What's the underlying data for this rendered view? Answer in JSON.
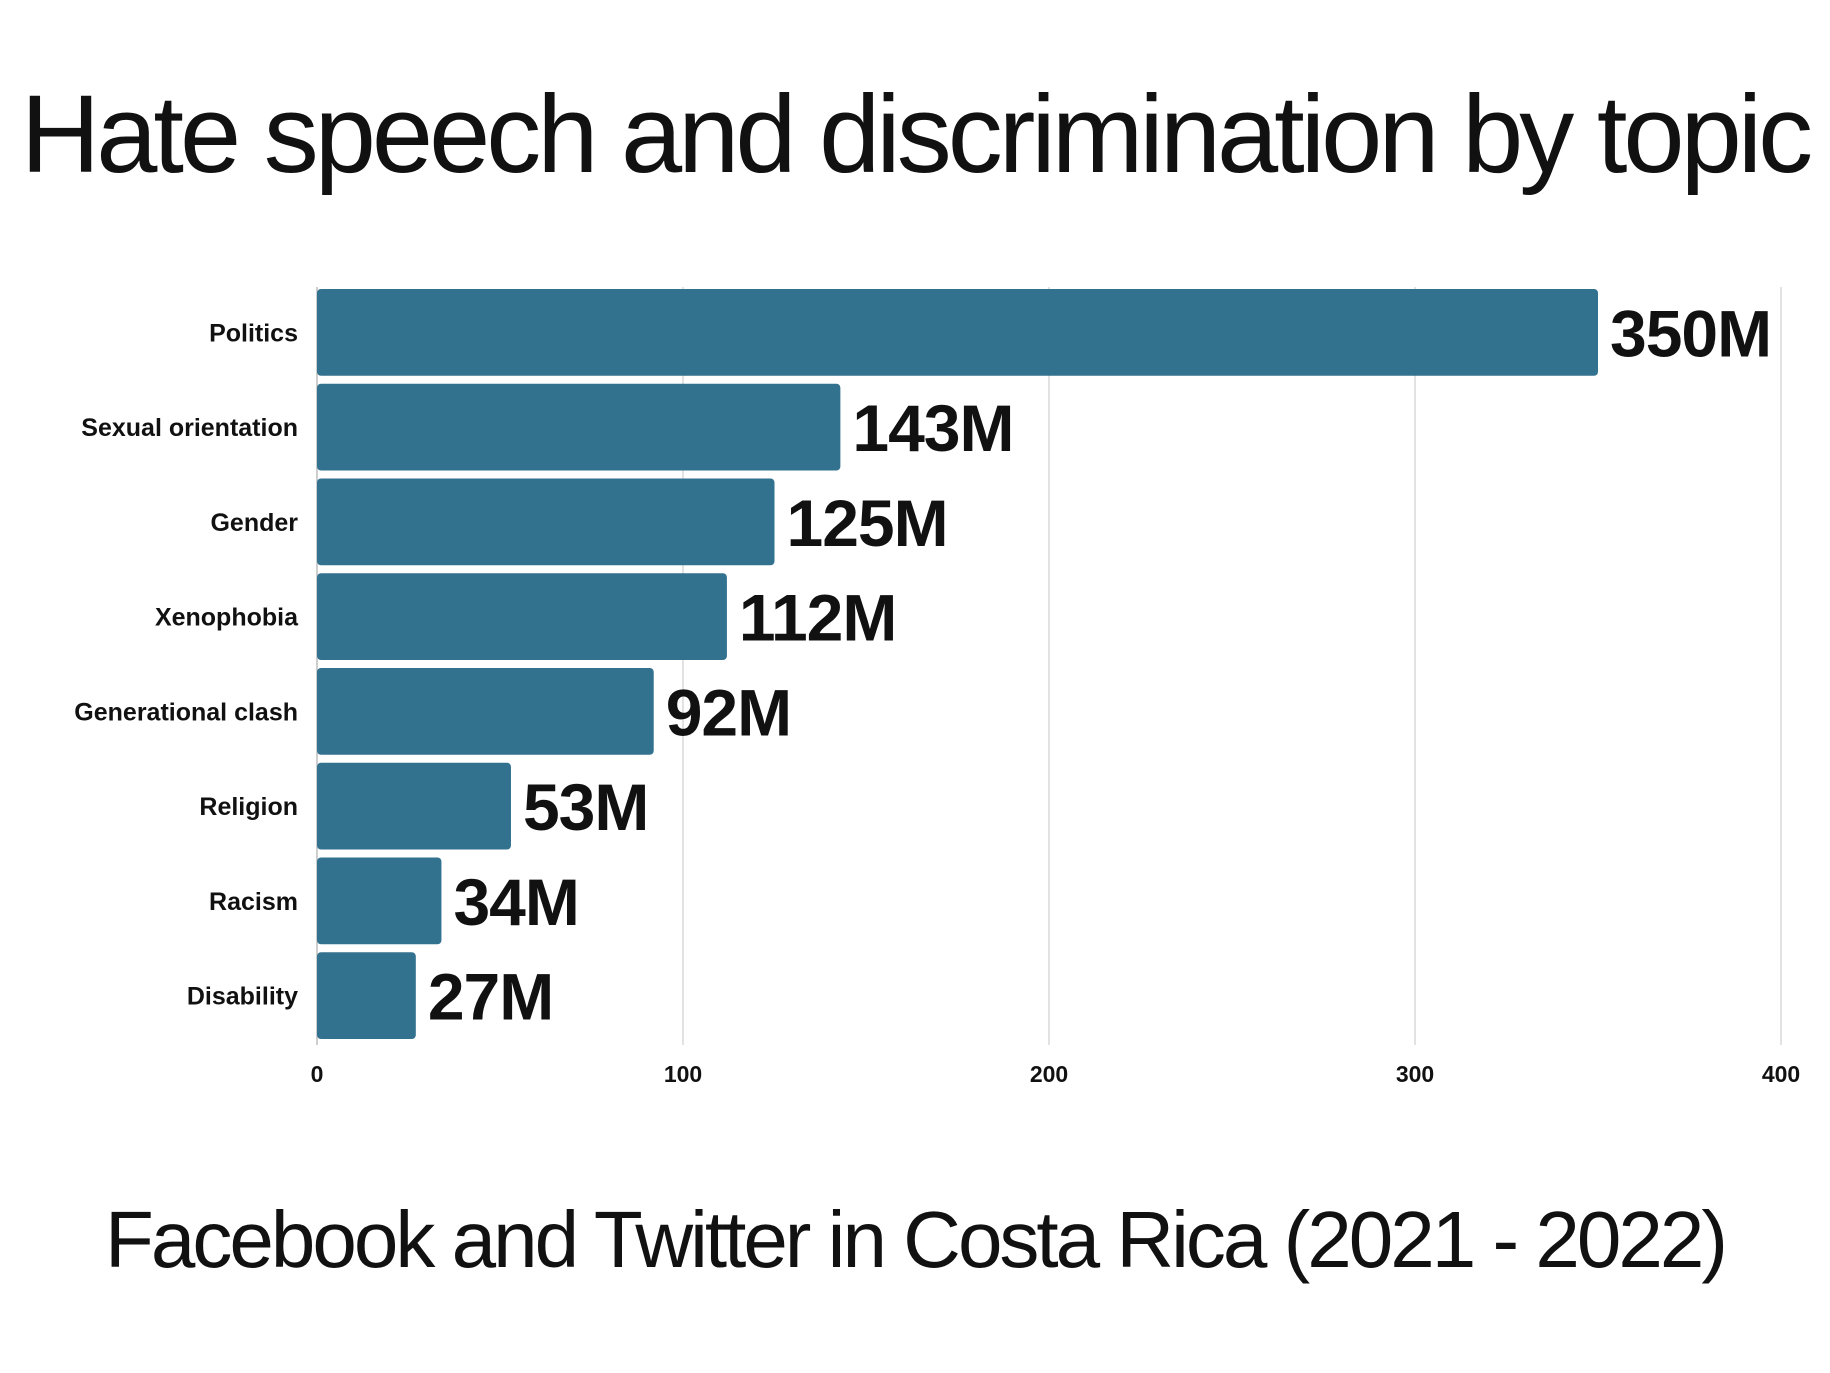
{
  "chart_data": {
    "type": "bar",
    "orientation": "horizontal",
    "title": "Hate speech and discrimination by topic",
    "subtitle": "Facebook and Twitter in Costa Rica (2021 - 2022)",
    "categories": [
      "Politics",
      "Sexual orientation",
      "Gender",
      "Xenophobia",
      "Generational clash",
      "Religion",
      "Racism",
      "Disability"
    ],
    "values": [
      350,
      143,
      125,
      112,
      92,
      53,
      34,
      27
    ],
    "value_labels": [
      "350M",
      "143M",
      "125M",
      "112M",
      "92M",
      "53M",
      "34M",
      "27M"
    ],
    "xlim": [
      0,
      400
    ],
    "xticks": [
      0,
      100,
      200,
      300,
      400
    ],
    "xtick_labels": [
      "0",
      "100",
      "200",
      "300",
      "400"
    ],
    "xlabel": "",
    "ylabel": "",
    "grid": "vertical",
    "legend": "none",
    "bar_color": "#33728f"
  }
}
